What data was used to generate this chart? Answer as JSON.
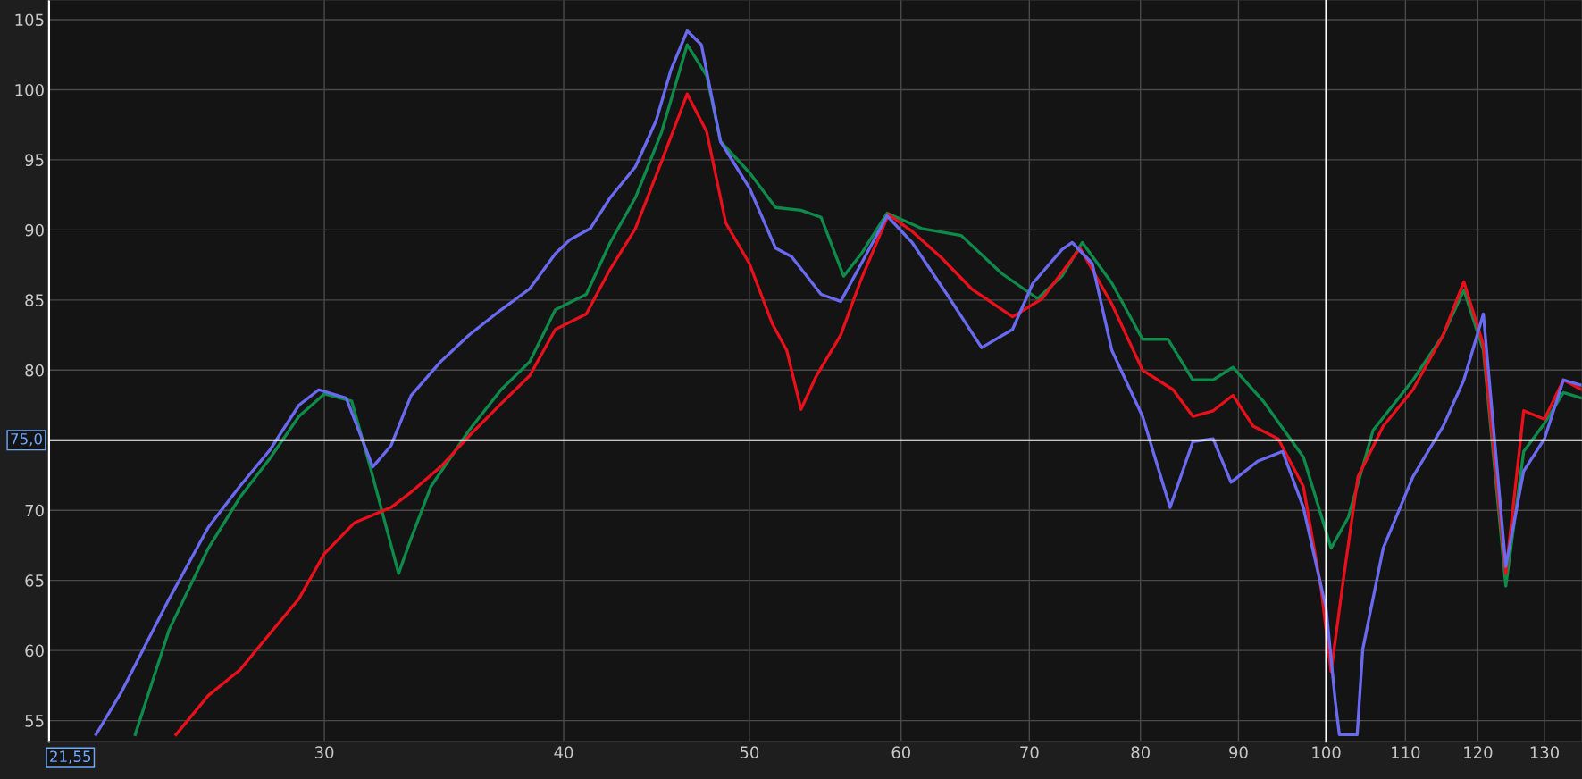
{
  "chart_data": {
    "type": "line",
    "log": "x",
    "xlim": [
      21.55,
      136
    ],
    "ylim": [
      53.5,
      106.4
    ],
    "xticks": [
      30,
      40,
      50,
      60,
      70,
      80,
      90,
      100,
      110,
      120,
      130
    ],
    "yticks": [
      55,
      60,
      65,
      70,
      80,
      85,
      90,
      95,
      100,
      105
    ],
    "grid": true,
    "marker": "none",
    "line_style": "solid",
    "ref_lines": [
      {
        "axis": "y",
        "value": 75,
        "label": "75,0",
        "color": "#ffffff"
      },
      {
        "axis": "x",
        "value": 100,
        "label": null,
        "color": "#ffffff"
      }
    ],
    "annotations": [
      "21,55"
    ],
    "series": [
      {
        "color": "#0e8a4a",
        "x": [
          23.9,
          24.9,
          26.1,
          27.1,
          28.1,
          29.1,
          30,
          31.0,
          31.7,
          32.8,
          33.3,
          34.1,
          35.7,
          37.1,
          38.4,
          39.6,
          41.1,
          42.3,
          43.6,
          45.0,
          46.4,
          47.5,
          48.3,
          50,
          51.6,
          53.2,
          54.5,
          56.0,
          57.2,
          59.0,
          61.5,
          64.5,
          67.7,
          70.7,
          72.8,
          74.6,
          77.3,
          80.2,
          82.7,
          85.2,
          87.3,
          89.4,
          92.7,
          97.3,
          100.6,
          102.7,
          105.8,
          111.0,
          115.1,
          118,
          120.8,
          124.1,
          126.8,
          130,
          133,
          136
        ],
        "values": [
          54.0,
          61.5,
          67.3,
          70.9,
          73.7,
          76.7,
          78.3,
          77.8,
          73.1,
          65.5,
          68.0,
          71.7,
          75.7,
          78.6,
          80.6,
          84.3,
          85.4,
          89.1,
          92.3,
          97.0,
          103.2,
          101.0,
          96.3,
          94.1,
          91.6,
          91.4,
          90.9,
          86.7,
          88.3,
          91.2,
          90.1,
          89.6,
          86.9,
          85.1,
          86.7,
          89.1,
          86.2,
          82.2,
          82.2,
          79.3,
          79.3,
          80.2,
          77.8,
          73.8,
          67.3,
          69.5,
          75.7,
          79.3,
          82.5,
          85.7,
          81.4,
          64.6,
          74.2,
          76.2,
          78.4,
          78.0
        ]
      },
      {
        "color": "#e8101a",
        "x": [
          25.1,
          26.1,
          27.1,
          28.1,
          29.1,
          30,
          31.1,
          32.5,
          33.3,
          34.5,
          35.7,
          37.1,
          38.4,
          39.6,
          41.1,
          42.3,
          43.6,
          45.0,
          46.4,
          47.5,
          48.6,
          50,
          51.4,
          52.3,
          53.2,
          54.2,
          55.8,
          57.2,
          59.1,
          60.8,
          63.0,
          65.3,
          68.6,
          71.1,
          74.4,
          77.3,
          80.2,
          83.2,
          85.2,
          87.3,
          89.4,
          91.6,
          94.4,
          97.3,
          99.4,
          100.6,
          102.1,
          103.9,
          107.1,
          111,
          115.1,
          118,
          120.8,
          124.1,
          126.8,
          130,
          133,
          136
        ],
        "values": [
          54.0,
          56.8,
          58.6,
          61.2,
          63.7,
          66.9,
          69.1,
          70.2,
          71.3,
          73.1,
          75.3,
          77.6,
          79.6,
          82.9,
          84.0,
          87.2,
          90.1,
          94.9,
          99.7,
          97.0,
          90.5,
          87.6,
          83.3,
          81.4,
          77.2,
          79.6,
          82.5,
          86.5,
          91.1,
          89.9,
          88.0,
          85.8,
          83.8,
          85.1,
          88.7,
          84.7,
          80.0,
          78.6,
          76.7,
          77.1,
          78.2,
          76.0,
          75.1,
          71.7,
          64.4,
          58.5,
          65.1,
          72.4,
          76.0,
          78.6,
          82.5,
          86.3,
          81.8,
          65.5,
          77.1,
          76.5,
          79.3,
          78.6
        ]
      },
      {
        "color": "#6a6af0",
        "x": [
          22.8,
          23.5,
          24.9,
          26.1,
          27.1,
          28.1,
          29.1,
          29.8,
          30.8,
          31.8,
          32.5,
          33.3,
          34.5,
          35.7,
          37.1,
          38.4,
          39.6,
          40.3,
          41.3,
          42.3,
          43.6,
          44.7,
          45.5,
          46.4,
          47.2,
          48.3,
          50,
          51.6,
          52.6,
          54.5,
          55.8,
          57.2,
          59.0,
          60.8,
          63.4,
          66.1,
          68.6,
          70.3,
          72.8,
          73.7,
          75.5,
          77.3,
          80.2,
          82.9,
          85.2,
          87.3,
          89.2,
          92.1,
          94.9,
          97.3,
          100,
          101.1,
          101.6,
          103.8,
          104.5,
          107.1,
          111.0,
          115.1,
          118.0,
          120.8,
          124.1,
          126.8,
          130.0,
          133.0,
          136
        ],
        "values": [
          54.0,
          57.0,
          63.7,
          68.8,
          71.7,
          74.3,
          77.5,
          78.6,
          78.0,
          73.1,
          74.6,
          78.2,
          80.6,
          82.5,
          84.3,
          85.8,
          88.3,
          89.3,
          90.1,
          92.3,
          94.5,
          97.8,
          101.4,
          104.2,
          103.2,
          96.3,
          93.0,
          88.7,
          88.1,
          85.4,
          84.9,
          87.6,
          91.0,
          89.1,
          85.4,
          81.6,
          82.9,
          86.2,
          88.6,
          89.1,
          87.6,
          81.4,
          76.7,
          70.2,
          74.9,
          75.1,
          72.0,
          73.5,
          74.2,
          70.2,
          63.0,
          56.4,
          54.0,
          54.0,
          60.1,
          67.3,
          72.4,
          76.0,
          79.3,
          84.0,
          66.0,
          72.8,
          75.1,
          79.3,
          78.9
        ]
      }
    ]
  }
}
